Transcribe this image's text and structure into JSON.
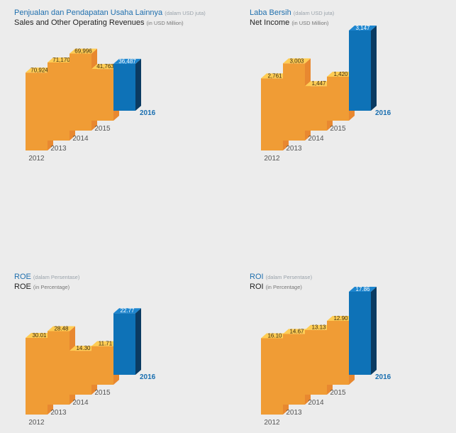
{
  "colors": {
    "front": "#f09c35",
    "top": "#ffcd55",
    "side": "#e88830",
    "hl_front": "#0e72b7",
    "hl_top": "#1e86cf",
    "hl_side": "#0b3b62"
  },
  "charts": [
    {
      "title_id": "Penjualan dan Pendapatan Usaha Lainnya",
      "unit_id": "(dalam USD juta)",
      "title_en": "Sales and Other Operating Revenues",
      "unit_en": "(in USD Million)"
    },
    {
      "title_id": "Laba Bersih",
      "unit_id": "(dalam USD juta)",
      "title_en": "Net Income",
      "unit_en": "(in USD Million)"
    },
    {
      "title_id": "ROE",
      "unit_id": "(dalam Persentase)",
      "title_en": "ROE",
      "unit_en": "(in Percentage)"
    },
    {
      "title_id": "ROI",
      "unit_id": "(dalam Persentase)",
      "title_en": "ROI",
      "unit_en": "(in Percentage)"
    }
  ],
  "chart_data": [
    {
      "type": "bar",
      "categories": [
        "2012",
        "2013",
        "2014",
        "2015",
        "2016"
      ],
      "values": [
        70924,
        71170,
        69996,
        41763,
        36487
      ],
      "value_labels": [
        "70,924",
        "71,170",
        "69,996",
        "41,763",
        "36,487"
      ],
      "highlight": "2016",
      "title": "Penjualan dan Pendapatan Usaha Lainnya (dalam USD juta) / Sales and Other Operating Revenues (in USD Million)"
    },
    {
      "type": "bar",
      "categories": [
        "2012",
        "2013",
        "2014",
        "2015",
        "2016"
      ],
      "values": [
        2761,
        3003,
        1447,
        1420,
        3147
      ],
      "value_labels": [
        "2,761",
        "3,003",
        "1,447",
        "1,420",
        "3,147"
      ],
      "highlight": "2016",
      "title": "Laba Bersih (dalam USD juta) / Net Income (in USD Million)"
    },
    {
      "type": "bar",
      "categories": [
        "2012",
        "2013",
        "2014",
        "2015",
        "2016"
      ],
      "values": [
        30.01,
        28.48,
        14.3,
        11.71,
        22.77
      ],
      "value_labels": [
        "30.01",
        "28.48",
        "14.30",
        "11.71",
        "22.77"
      ],
      "highlight": "2016",
      "title": "ROE (dalam Persentase) / ROE (in Percentage)"
    },
    {
      "type": "bar",
      "categories": [
        "2012",
        "2013",
        "2014",
        "2015",
        "2016"
      ],
      "values": [
        16.1,
        14.67,
        13.13,
        12.9,
        17.86
      ],
      "value_labels": [
        "16.10",
        "14.67",
        "13.13",
        "12.90",
        "17.86"
      ],
      "highlight": "2016",
      "title": "ROI (dalam Persentase) / ROI (in Percentage)"
    }
  ]
}
